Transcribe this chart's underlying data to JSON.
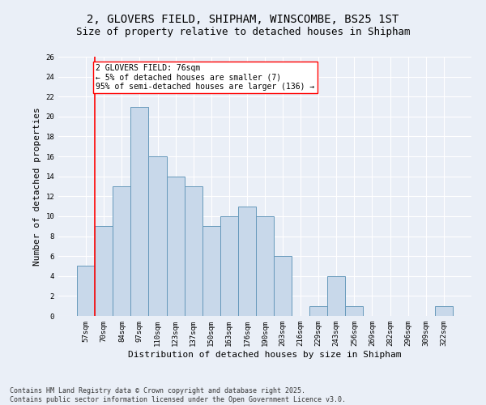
{
  "title_line1": "2, GLOVERS FIELD, SHIPHAM, WINSCOMBE, BS25 1ST",
  "title_line2": "Size of property relative to detached houses in Shipham",
  "xlabel": "Distribution of detached houses by size in Shipham",
  "ylabel": "Number of detached properties",
  "categories": [
    "57sqm",
    "70sqm",
    "84sqm",
    "97sqm",
    "110sqm",
    "123sqm",
    "137sqm",
    "150sqm",
    "163sqm",
    "176sqm",
    "190sqm",
    "203sqm",
    "216sqm",
    "229sqm",
    "243sqm",
    "256sqm",
    "269sqm",
    "282sqm",
    "296sqm",
    "309sqm",
    "322sqm"
  ],
  "values": [
    5,
    9,
    13,
    21,
    16,
    14,
    13,
    9,
    10,
    11,
    10,
    6,
    0,
    1,
    4,
    1,
    0,
    0,
    0,
    0,
    1
  ],
  "bar_color": "#c8d8ea",
  "bar_edge_color": "#6699bb",
  "annotation_text": "2 GLOVERS FIELD: 76sqm\n← 5% of detached houses are smaller (7)\n95% of semi-detached houses are larger (136) →",
  "annotation_box_color": "white",
  "annotation_box_edge_color": "red",
  "vline_color": "red",
  "ylim": [
    0,
    26
  ],
  "yticks": [
    0,
    2,
    4,
    6,
    8,
    10,
    12,
    14,
    16,
    18,
    20,
    22,
    24,
    26
  ],
  "background_color": "#eaeff7",
  "plot_bg_color": "#eaeff7",
  "footer_line1": "Contains HM Land Registry data © Crown copyright and database right 2025.",
  "footer_line2": "Contains public sector information licensed under the Open Government Licence v3.0.",
  "title_fontsize": 10,
  "subtitle_fontsize": 9,
  "axis_label_fontsize": 8,
  "tick_fontsize": 6.5,
  "footer_fontsize": 6,
  "annotation_fontsize": 7
}
